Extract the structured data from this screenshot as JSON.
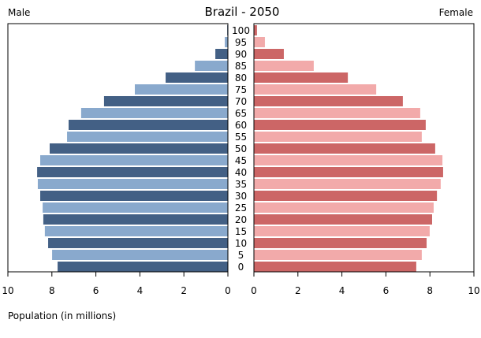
{
  "chart_data": {
    "type": "bar",
    "title": "Brazil - 2050",
    "left_label": "Male",
    "right_label": "Female",
    "xlabel": "Population (in millions)",
    "xlim": [
      0,
      10
    ],
    "x_ticks": [
      "10",
      "8",
      "6",
      "4",
      "2",
      "0"
    ],
    "x_ticks_right": [
      "0",
      "2",
      "4",
      "6",
      "8",
      "10"
    ],
    "categories": [
      "100",
      "95",
      "90",
      "85",
      "80",
      "75",
      "70",
      "65",
      "60",
      "55",
      "50",
      "45",
      "40",
      "35",
      "30",
      "25",
      "20",
      "15",
      "10",
      "5",
      "0"
    ],
    "series": [
      {
        "name": "Male",
        "values": [
          0.03,
          0.14,
          0.57,
          1.5,
          2.83,
          4.23,
          5.63,
          6.67,
          7.24,
          7.31,
          8.1,
          8.53,
          8.67,
          8.64,
          8.53,
          8.42,
          8.39,
          8.32,
          8.17,
          7.99,
          7.74
        ]
      },
      {
        "name": "Female",
        "values": [
          0.14,
          0.5,
          1.36,
          2.72,
          4.27,
          5.56,
          6.77,
          7.56,
          7.81,
          7.63,
          8.24,
          8.57,
          8.6,
          8.49,
          8.32,
          8.17,
          8.1,
          7.99,
          7.85,
          7.63,
          7.38
        ]
      }
    ],
    "colors": {
      "male_dark": "#436085",
      "male_light": "#89a9cd",
      "female_dark": "#cc6666",
      "female_light": "#f2aaaa"
    }
  }
}
